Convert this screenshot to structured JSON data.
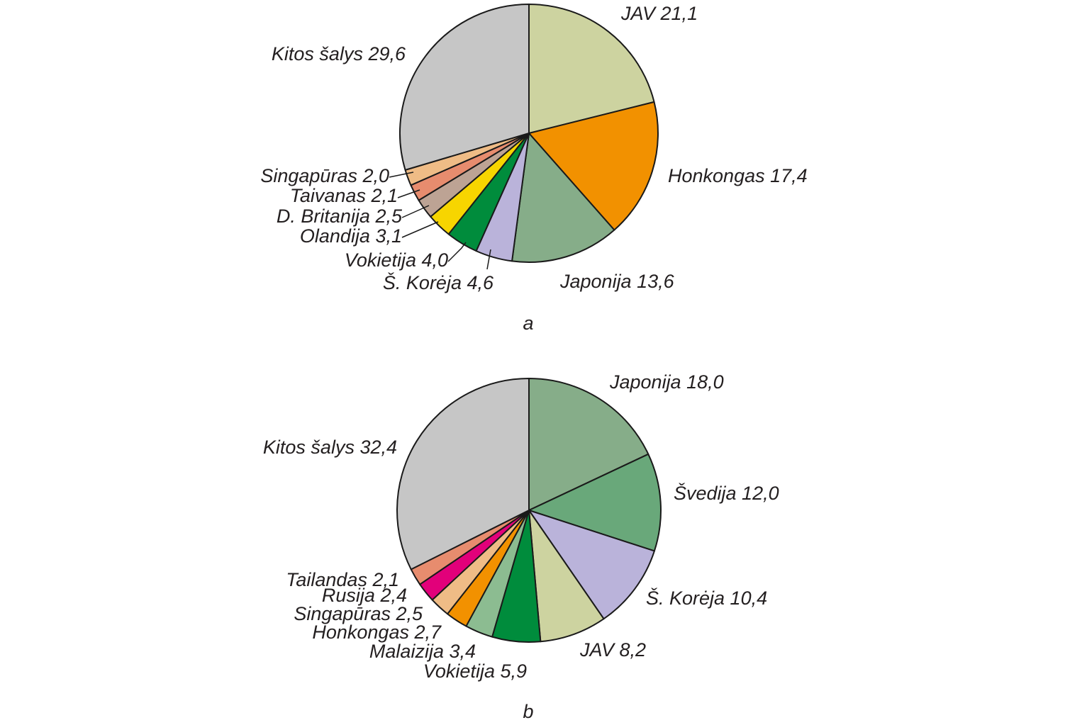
{
  "chart_data": [
    {
      "type": "pie",
      "caption": "a",
      "unit": "%",
      "slices": [
        {
          "name": "JAV",
          "value": 21.1,
          "label": "JAV 21,1",
          "color": "#cdd3a0"
        },
        {
          "name": "Honkongas",
          "value": 17.4,
          "label": "Honkongas 17,4",
          "color": "#f29100"
        },
        {
          "name": "Japonija",
          "value": 13.6,
          "label": "Japonija 13,6",
          "color": "#86ad89"
        },
        {
          "name": "Š. Korėja",
          "value": 4.6,
          "label": "Š. Korėja 4,6",
          "color": "#bab3da"
        },
        {
          "name": "Vokietija",
          "value": 4.0,
          "label": "Vokietija 4,0",
          "color": "#008c3c"
        },
        {
          "name": "Olandija",
          "value": 3.1,
          "label": "Olandija 3,1",
          "color": "#f7d500"
        },
        {
          "name": "D. Britanija",
          "value": 2.5,
          "label": "D. Britanija 2,5",
          "color": "#bda394"
        },
        {
          "name": "Taivanas",
          "value": 2.1,
          "label": "Taivanas 2,1",
          "color": "#e78c6e"
        },
        {
          "name": "Singapūras",
          "value": 2.0,
          "label": "Singapūras 2,0",
          "color": "#efbc86"
        },
        {
          "name": "Kitos šalys",
          "value": 29.6,
          "label": "Kitos šalys 29,6",
          "color": "#c6c6c6"
        }
      ]
    },
    {
      "type": "pie",
      "caption": "b",
      "unit": "%",
      "slices": [
        {
          "name": "Japonija",
          "value": 18.0,
          "label": "Japonija 18,0",
          "color": "#86ad89"
        },
        {
          "name": "Švedija",
          "value": 12.0,
          "label": "Švedija 12,0",
          "color": "#69a87a"
        },
        {
          "name": "Š. Korėja",
          "value": 10.4,
          "label": "Š. Korėja 10,4",
          "color": "#bab3da"
        },
        {
          "name": "JAV",
          "value": 8.2,
          "label": "JAV 8,2",
          "color": "#cdd3a0"
        },
        {
          "name": "Vokietija",
          "value": 5.9,
          "label": "Vokietija 5,9",
          "color": "#008c3c"
        },
        {
          "name": "Malaizija",
          "value": 3.4,
          "label": "Malaizija 3,4",
          "color": "#8cbc91"
        },
        {
          "name": "Honkongas",
          "value": 2.7,
          "label": "Honkongas 2,7",
          "color": "#f29100"
        },
        {
          "name": "Singapūras",
          "value": 2.5,
          "label": "Singapūras 2,5",
          "color": "#efbc86"
        },
        {
          "name": "Rusija",
          "value": 2.4,
          "label": "Rusija 2,4",
          "color": "#e2007a"
        },
        {
          "name": "Tailandas",
          "value": 2.1,
          "label": "Tailandas 2,1",
          "color": "#e78c6e"
        },
        {
          "name": "Kitos šalys",
          "value": 32.4,
          "label": "Kitos šalys 32,4",
          "color": "#c6c6c6"
        }
      ]
    }
  ]
}
